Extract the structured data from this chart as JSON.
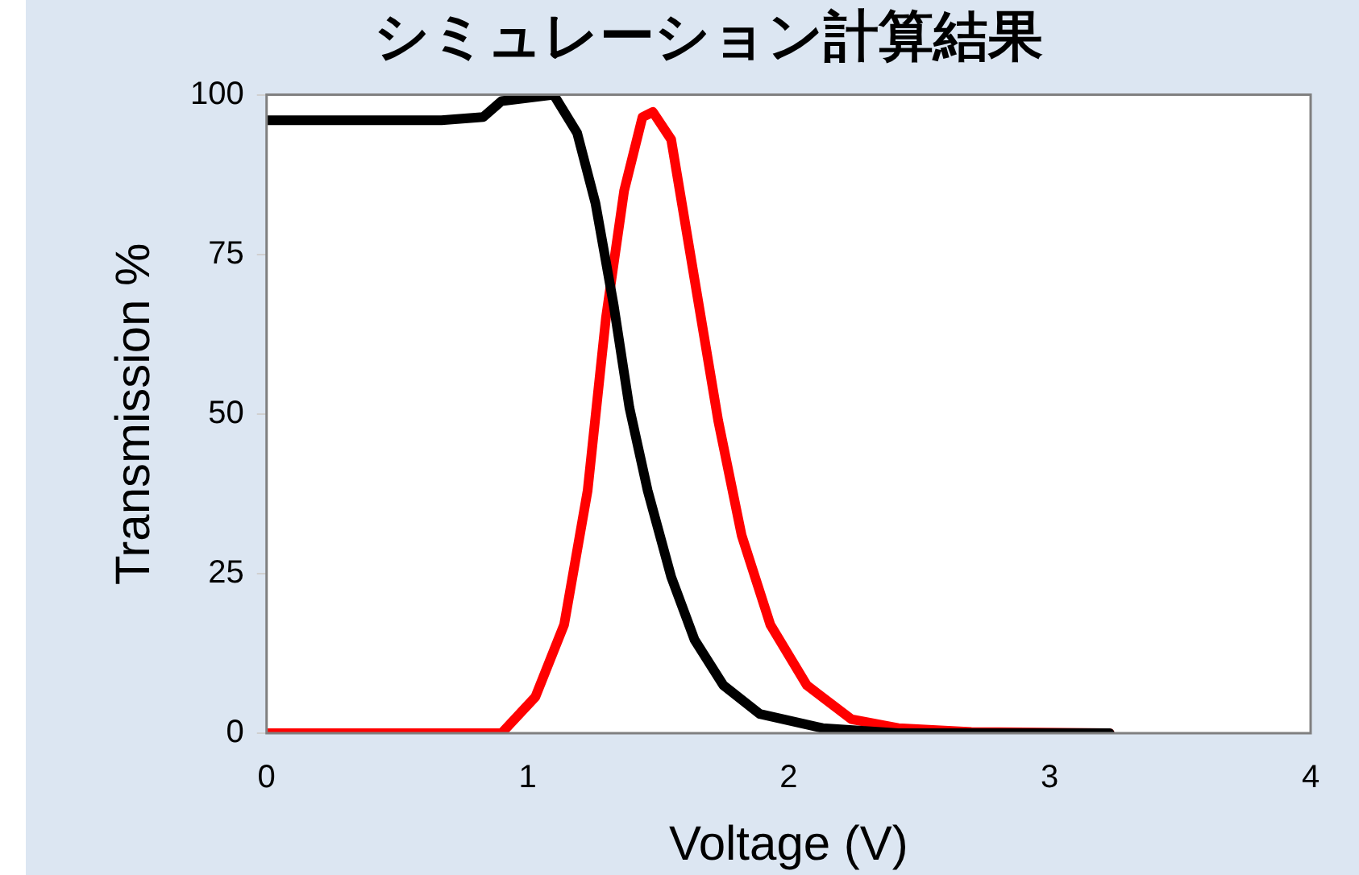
{
  "chart_data": {
    "type": "line",
    "title": "シミュレーション計算結果",
    "xlabel": "Voltage (V)",
    "ylabel": "Transmission %",
    "xlim": [
      0,
      4
    ],
    "xticks": [
      0,
      1,
      2,
      3,
      4
    ],
    "ylim": [
      0,
      100
    ],
    "yticks": [
      0,
      25,
      50,
      75,
      100
    ],
    "grid": false,
    "legend": false,
    "marker": "none",
    "line_style": "solid",
    "series": [
      {
        "color": "#000000",
        "x": [
          0,
          0.67,
          0.83,
          0.9,
          1.1,
          1.19,
          1.26,
          1.33,
          1.39,
          1.46,
          1.55,
          1.64,
          1.75,
          1.89,
          2.13,
          2.42,
          3.23
        ],
        "values": [
          96,
          96,
          96.5,
          99,
          100,
          94,
          83,
          67,
          51,
          38,
          24.5,
          14.6,
          7.5,
          3,
          0.8,
          0,
          0
        ]
      },
      {
        "color": "#ff0000",
        "x": [
          0,
          0.9,
          1.03,
          1.14,
          1.23,
          1.3,
          1.37,
          1.44,
          1.48,
          1.55,
          1.64,
          1.73,
          1.82,
          1.93,
          2.07,
          2.24,
          2.42,
          2.7,
          3.23
        ],
        "values": [
          0,
          0,
          5.7,
          17,
          38,
          65,
          85,
          96.5,
          97.3,
          93,
          71,
          49,
          31,
          17,
          7.5,
          2.2,
          0.8,
          0.2,
          0
        ]
      }
    ]
  }
}
